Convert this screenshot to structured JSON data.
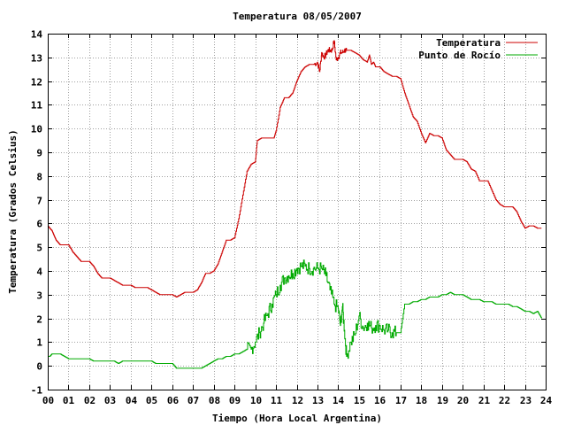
{
  "chart_data": {
    "type": "line",
    "title": "Temperatura 08/05/2007",
    "xlabel": "Tiempo (Hora Local Argentina)",
    "ylabel": "Temperatura (Grados Celsius)",
    "xlim": [
      0,
      24
    ],
    "ylim": [
      -1,
      14
    ],
    "x_ticks": [
      "00",
      "01",
      "02",
      "03",
      "04",
      "05",
      "06",
      "07",
      "08",
      "09",
      "10",
      "11",
      "12",
      "13",
      "14",
      "15",
      "16",
      "17",
      "18",
      "19",
      "20",
      "21",
      "22",
      "23",
      "24"
    ],
    "y_ticks": [
      "-1",
      "0",
      "1",
      "2",
      "3",
      "4",
      "5",
      "6",
      "7",
      "8",
      "9",
      "10",
      "11",
      "12",
      "13",
      "14"
    ],
    "grid": true,
    "legend_position": "top-right",
    "series": [
      {
        "name": "Temperatura",
        "color": "#cc0000",
        "x": [
          0.0,
          0.1,
          0.2,
          0.3,
          0.4,
          0.5,
          0.6,
          0.8,
          1.0,
          1.2,
          1.4,
          1.6,
          1.8,
          2.0,
          2.2,
          2.4,
          2.6,
          2.8,
          3.0,
          3.2,
          3.4,
          3.6,
          3.8,
          4.0,
          4.2,
          4.4,
          4.6,
          4.8,
          5.0,
          5.2,
          5.4,
          5.6,
          5.8,
          6.0,
          6.2,
          6.4,
          6.6,
          6.8,
          7.0,
          7.2,
          7.4,
          7.6,
          7.8,
          8.0,
          8.2,
          8.4,
          8.6,
          8.8,
          9.0,
          9.2,
          9.4,
          9.6,
          9.8,
          10.0,
          10.1,
          10.3,
          10.5,
          10.7,
          10.9,
          11.0,
          11.2,
          11.4,
          11.6,
          11.8,
          12.0,
          12.2,
          12.4,
          12.6,
          12.8,
          13.0,
          13.1,
          13.2,
          13.3,
          13.4,
          13.5,
          13.6,
          13.7,
          13.8,
          13.9,
          14.0,
          14.1,
          14.2,
          14.3,
          14.4,
          14.6,
          14.8,
          15.0,
          15.2,
          15.4,
          15.5,
          15.6,
          15.7,
          15.8,
          16.0,
          16.2,
          16.4,
          16.6,
          16.8,
          17.0,
          17.2,
          17.4,
          17.6,
          17.8,
          18.0,
          18.2,
          18.4,
          18.6,
          18.8,
          19.0,
          19.2,
          19.4,
          19.6,
          19.8,
          20.0,
          20.2,
          20.4,
          20.6,
          20.8,
          21.0,
          21.2,
          21.4,
          21.6,
          21.8,
          22.0,
          22.2,
          22.4,
          22.6,
          22.8,
          23.0,
          23.2,
          23.4,
          23.6,
          23.8
        ],
        "y": [
          5.9,
          5.8,
          5.7,
          5.5,
          5.3,
          5.2,
          5.1,
          5.1,
          5.1,
          4.8,
          4.6,
          4.4,
          4.4,
          4.4,
          4.2,
          3.9,
          3.7,
          3.7,
          3.7,
          3.6,
          3.5,
          3.4,
          3.4,
          3.4,
          3.3,
          3.3,
          3.3,
          3.3,
          3.2,
          3.1,
          3.0,
          3.0,
          3.0,
          3.0,
          2.9,
          3.0,
          3.1,
          3.1,
          3.1,
          3.2,
          3.5,
          3.9,
          3.9,
          4.0,
          4.3,
          4.8,
          5.3,
          5.3,
          5.4,
          6.2,
          7.2,
          8.2,
          8.5,
          8.6,
          9.5,
          9.6,
          9.6,
          9.6,
          9.6,
          9.9,
          10.9,
          11.3,
          11.3,
          11.5,
          12.0,
          12.4,
          12.6,
          12.7,
          12.7,
          12.8,
          12.4,
          13.2,
          13.0,
          13.1,
          13.3,
          13.3,
          13.3,
          13.7,
          12.9,
          13.0,
          13.2,
          13.2,
          13.3,
          13.3,
          13.3,
          13.2,
          13.1,
          12.9,
          12.8,
          13.1,
          12.7,
          12.8,
          12.6,
          12.6,
          12.4,
          12.3,
          12.2,
          12.2,
          12.1,
          11.5,
          11.0,
          10.5,
          10.3,
          9.8,
          9.4,
          9.8,
          9.7,
          9.7,
          9.6,
          9.1,
          8.9,
          8.7,
          8.7,
          8.7,
          8.6,
          8.3,
          8.2,
          7.8,
          7.8,
          7.8,
          7.4,
          7.0,
          6.8,
          6.7,
          6.7,
          6.7,
          6.5,
          6.1,
          5.8,
          5.9,
          5.9,
          5.8,
          5.8
        ],
        "dense_from_x": 12.8,
        "dense_to_x": 14.4,
        "dense_amplitude": 0.12
      },
      {
        "name": "Punto de Rocío",
        "color": "#00aa00",
        "x": [
          0.0,
          0.1,
          0.2,
          0.4,
          0.6,
          0.8,
          1.0,
          1.2,
          1.4,
          1.6,
          1.8,
          2.0,
          2.2,
          2.4,
          2.6,
          2.8,
          3.0,
          3.2,
          3.4,
          3.6,
          3.8,
          4.0,
          4.2,
          4.4,
          4.6,
          4.8,
          5.0,
          5.2,
          5.4,
          5.6,
          5.8,
          6.0,
          6.2,
          6.4,
          6.6,
          6.8,
          7.0,
          7.2,
          7.4,
          7.6,
          7.8,
          8.0,
          8.2,
          8.4,
          8.6,
          8.8,
          9.0,
          9.2,
          9.4,
          9.6,
          9.8,
          10.0,
          10.2,
          10.4,
          10.6,
          10.8,
          11.0,
          11.2,
          11.4,
          11.6,
          11.8,
          12.0,
          12.2,
          12.4,
          12.6,
          12.8,
          13.0,
          13.2,
          13.4,
          13.6,
          13.8,
          14.0,
          14.1,
          14.2,
          14.3,
          14.4,
          14.6,
          14.8,
          15.0,
          15.2,
          15.4,
          15.6,
          15.8,
          16.0,
          16.2,
          16.4,
          16.6,
          16.8,
          17.0,
          17.2,
          17.4,
          17.6,
          17.8,
          18.0,
          18.2,
          18.4,
          18.6,
          18.8,
          19.0,
          19.2,
          19.4,
          19.6,
          19.8,
          20.0,
          20.2,
          20.4,
          20.6,
          20.8,
          21.0,
          21.2,
          21.4,
          21.6,
          21.8,
          22.0,
          22.2,
          22.4,
          22.6,
          22.8,
          23.0,
          23.2,
          23.4,
          23.6,
          23.8
        ],
        "y": [
          0.4,
          0.4,
          0.5,
          0.5,
          0.5,
          0.4,
          0.3,
          0.3,
          0.3,
          0.3,
          0.3,
          0.3,
          0.2,
          0.2,
          0.2,
          0.2,
          0.2,
          0.2,
          0.1,
          0.2,
          0.2,
          0.2,
          0.2,
          0.2,
          0.2,
          0.2,
          0.2,
          0.1,
          0.1,
          0.1,
          0.1,
          0.1,
          -0.1,
          -0.1,
          -0.1,
          -0.1,
          -0.1,
          -0.1,
          -0.1,
          0.0,
          0.1,
          0.2,
          0.3,
          0.3,
          0.4,
          0.4,
          0.5,
          0.5,
          0.6,
          0.7,
          0.7,
          1.0,
          1.4,
          1.8,
          2.2,
          2.6,
          3.0,
          3.4,
          3.7,
          3.8,
          3.9,
          4.1,
          4.2,
          4.2,
          4.1,
          4.1,
          4.1,
          4.1,
          3.8,
          3.2,
          2.6,
          2.4,
          1.7,
          2.5,
          1.5,
          0.4,
          1.0,
          1.3,
          2.1,
          1.6,
          1.8,
          1.6,
          1.7,
          1.7,
          1.5,
          1.5,
          1.4,
          1.4,
          1.4,
          2.6,
          2.6,
          2.7,
          2.7,
          2.8,
          2.8,
          2.9,
          2.9,
          2.9,
          3.0,
          3.0,
          3.1,
          3.0,
          3.0,
          3.0,
          2.9,
          2.8,
          2.8,
          2.8,
          2.7,
          2.7,
          2.7,
          2.6,
          2.6,
          2.6,
          2.6,
          2.5,
          2.5,
          2.4,
          2.3,
          2.3,
          2.2,
          2.3,
          2.0
        ],
        "dense_from_x": 9.6,
        "dense_to_x": 16.8,
        "dense_amplitude": 0.3
      }
    ]
  }
}
